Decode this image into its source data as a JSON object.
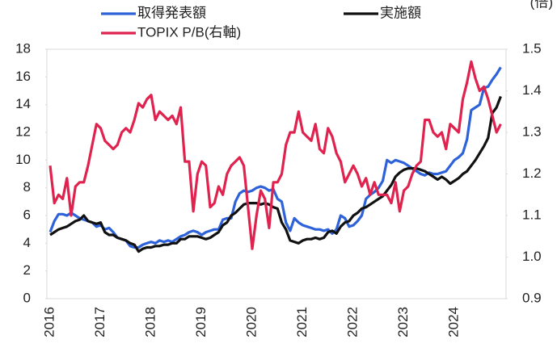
{
  "chart_data": {
    "type": "line",
    "y2_unit": "(倍)",
    "categories": [
      "2016",
      null,
      null,
      null,
      null,
      null,
      null,
      null,
      null,
      null,
      null,
      null,
      "2017",
      null,
      null,
      null,
      null,
      null,
      null,
      null,
      null,
      null,
      null,
      null,
      "2018",
      null,
      null,
      null,
      null,
      null,
      null,
      null,
      null,
      null,
      null,
      null,
      "2019",
      null,
      null,
      null,
      null,
      null,
      null,
      null,
      null,
      null,
      null,
      null,
      "2020",
      null,
      null,
      null,
      null,
      null,
      null,
      null,
      null,
      null,
      null,
      null,
      "2021",
      null,
      null,
      null,
      null,
      null,
      null,
      null,
      null,
      null,
      null,
      null,
      "2022",
      null,
      null,
      null,
      null,
      null,
      null,
      null,
      null,
      null,
      null,
      null,
      "2023",
      null,
      null,
      null,
      null,
      null,
      null,
      null,
      null,
      null,
      null,
      null,
      "2024",
      null,
      null,
      null,
      null,
      null,
      null,
      null,
      null,
      null,
      null,
      null
    ],
    "ylim": [
      0,
      18
    ],
    "yticks": [
      0,
      2,
      4,
      6,
      8,
      10,
      12,
      14,
      16,
      18
    ],
    "y2lim": [
      0.9,
      1.5
    ],
    "y2ticks": [
      0.9,
      {
        "value": 1,
        "label": "1.0"
      },
      1.1,
      1.2,
      1.3,
      1.4,
      1.5
    ],
    "series": [
      {
        "name": "取得発表額",
        "color": "#2e62d9",
        "values": [
          4.8,
          5.6,
          6.1,
          6.1,
          6.0,
          6.2,
          6.0,
          5.8,
          5.7,
          5.6,
          5.5,
          5.2,
          5.3,
          5.0,
          5.1,
          4.8,
          4.4,
          4.3,
          4.2,
          3.8,
          3.7,
          3.7,
          3.9,
          4.0,
          4.1,
          4.0,
          4.2,
          4.1,
          4.2,
          4.1,
          4.3,
          4.5,
          4.6,
          4.8,
          4.9,
          4.8,
          4.6,
          4.8,
          4.9,
          5.0,
          5.0,
          5.7,
          5.8,
          5.8,
          7.0,
          7.6,
          7.8,
          7.7,
          7.8,
          8.0,
          8.1,
          8.0,
          7.8,
          7.9,
          7.2,
          7.0,
          5.5,
          4.9,
          5.8,
          5.5,
          5.3,
          5.2,
          5.1,
          5.0,
          5.0,
          4.9,
          5.0,
          4.7,
          5.0,
          6.0,
          5.8,
          5.2,
          5.3,
          5.6,
          6.0,
          7.2,
          7.5,
          7.7,
          8.0,
          8.5,
          10.0,
          9.8,
          10.0,
          9.9,
          9.8,
          9.6,
          9.4,
          9.2,
          9.0,
          8.9,
          9.1,
          9.0,
          9.0,
          9.1,
          9.2,
          9.6,
          10.0,
          10.2,
          10.5,
          11.5,
          13.6,
          13.8,
          14.0,
          15.2,
          15.3,
          15.8,
          16.2,
          16.7
        ]
      },
      {
        "name": "実施額",
        "color": "#111111",
        "values": [
          4.6,
          4.8,
          5.0,
          5.1,
          5.2,
          5.4,
          5.6,
          5.7,
          6.0,
          5.6,
          5.5,
          5.4,
          5.5,
          4.8,
          4.6,
          4.6,
          4.4,
          4.3,
          4.2,
          4.0,
          3.9,
          3.4,
          3.6,
          3.7,
          3.7,
          3.8,
          3.8,
          3.9,
          3.9,
          4.0,
          4.0,
          4.3,
          4.3,
          4.5,
          4.5,
          4.5,
          4.4,
          4.3,
          4.4,
          4.6,
          4.8,
          5.3,
          5.5,
          6.0,
          6.2,
          6.5,
          6.8,
          6.9,
          6.9,
          6.9,
          6.8,
          6.9,
          6.8,
          6.6,
          6.5,
          5.5,
          5.0,
          4.2,
          4.1,
          4.0,
          4.2,
          4.3,
          4.3,
          4.4,
          4.3,
          4.4,
          4.8,
          4.9,
          4.7,
          5.2,
          5.5,
          5.6,
          6.0,
          6.2,
          6.5,
          6.6,
          6.8,
          7.0,
          7.2,
          7.4,
          7.8,
          8.2,
          8.8,
          9.1,
          9.3,
          9.4,
          9.4,
          9.4,
          9.3,
          9.2,
          9.0,
          8.8,
          8.6,
          8.8,
          8.6,
          8.3,
          8.5,
          8.7,
          9.0,
          9.2,
          9.6,
          10.0,
          10.5,
          11.0,
          11.6,
          13.4,
          13.8,
          14.6
        ]
      },
      {
        "name": "TOPIX P/B(右軸)",
        "color": "#e0224f",
        "axis": "y2",
        "values": [
          1.22,
          1.13,
          1.15,
          1.14,
          1.19,
          1.1,
          1.17,
          1.18,
          1.18,
          1.22,
          1.27,
          1.32,
          1.31,
          1.28,
          1.27,
          1.26,
          1.27,
          1.3,
          1.31,
          1.3,
          1.33,
          1.37,
          1.36,
          1.38,
          1.39,
          1.33,
          1.35,
          1.34,
          1.33,
          1.34,
          1.32,
          1.36,
          1.23,
          1.23,
          1.11,
          1.2,
          1.23,
          1.22,
          1.12,
          1.13,
          1.17,
          1.15,
          1.2,
          1.22,
          1.23,
          1.24,
          1.22,
          1.12,
          1.02,
          1.1,
          1.16,
          1.14,
          1.07,
          1.18,
          1.18,
          1.2,
          1.27,
          1.3,
          1.3,
          1.35,
          1.3,
          1.29,
          1.28,
          1.32,
          1.26,
          1.25,
          1.31,
          1.29,
          1.25,
          1.23,
          1.18,
          1.2,
          1.22,
          1.2,
          1.17,
          1.19,
          1.15,
          1.18,
          1.15,
          1.15,
          1.15,
          1.13,
          1.18,
          1.11,
          1.16,
          1.17,
          1.2,
          1.22,
          1.23,
          1.33,
          1.33,
          1.3,
          1.29,
          1.3,
          1.26,
          1.32,
          1.31,
          1.3,
          1.38,
          1.42,
          1.47,
          1.43,
          1.4,
          1.41,
          1.38,
          1.34,
          1.3,
          1.32
        ]
      }
    ]
  }
}
